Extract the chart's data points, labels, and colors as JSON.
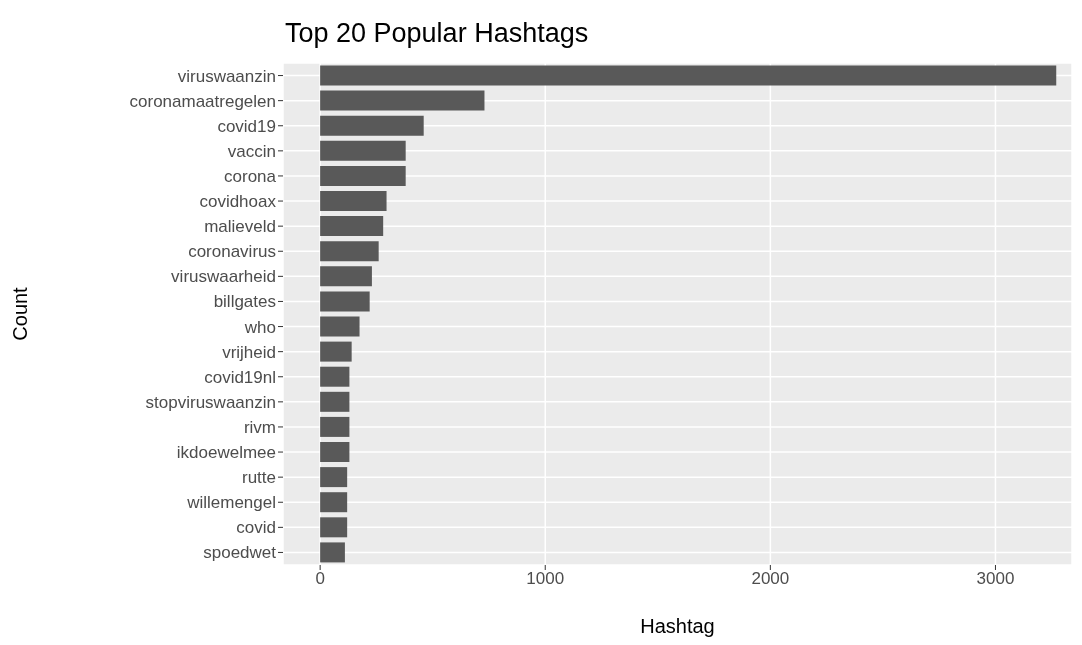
{
  "chart_data": {
    "type": "bar",
    "orientation": "horizontal",
    "title": "Top 20 Popular Hashtags",
    "xlabel": "Hashtag",
    "ylabel": "Count",
    "categories": [
      "viruswaanzin",
      "coronamaatregelen",
      "covid19",
      "vaccin",
      "corona",
      "covidhoax",
      "malieveld",
      "coronavirus",
      "viruswaarheid",
      "billgates",
      "who",
      "vrijheid",
      "covid19nl",
      "stopviruswaanzin",
      "rivm",
      "ikdoewelmee",
      "rutte",
      "willemengel",
      "covid",
      "spoedwet"
    ],
    "values": [
      3270,
      730,
      460,
      380,
      380,
      295,
      280,
      260,
      230,
      220,
      175,
      140,
      130,
      130,
      130,
      130,
      120,
      120,
      120,
      110
    ],
    "color": "#595959",
    "xlim": [
      -165,
      3340
    ],
    "xticks": [
      0,
      1000,
      2000,
      3000
    ],
    "grid": true
  }
}
